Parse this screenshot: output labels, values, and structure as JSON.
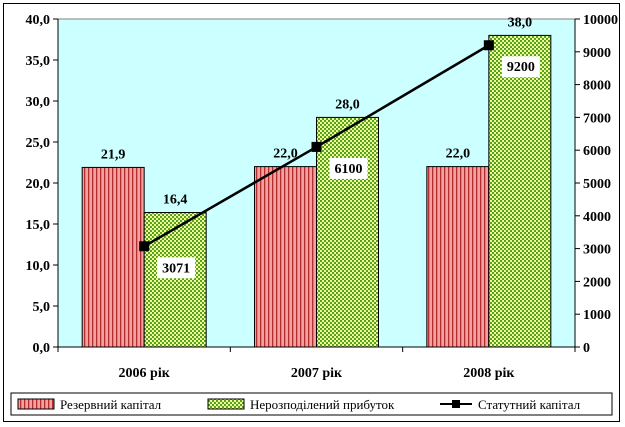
{
  "chart_data": {
    "type": "bar+line",
    "categories": [
      "2006 рік",
      "2007 рік",
      "2008 рік"
    ],
    "series": [
      {
        "name": "Резервний капітал",
        "kind": "bar",
        "axis": "left",
        "values": [
          21.9,
          22.0,
          22.0
        ],
        "labels": [
          "21,9",
          "22,0",
          "22,0"
        ],
        "color": "#f08080"
      },
      {
        "name": "Нерозподілений прибуток",
        "kind": "bar",
        "axis": "left",
        "values": [
          16.4,
          28.0,
          38.0
        ],
        "labels": [
          "16,4",
          "28,0",
          "38,0"
        ],
        "color": "#99cc33"
      },
      {
        "name": "Статутний капітал",
        "kind": "line",
        "axis": "right",
        "values": [
          3071,
          6100,
          9200
        ],
        "labels": [
          "3071",
          "6100",
          "9200"
        ],
        "color": "#000000"
      }
    ],
    "y_left": {
      "lim": [
        0,
        40
      ],
      "ticks": [
        "0,0",
        "5,0",
        "10,0",
        "15,0",
        "20,0",
        "25,0",
        "30,0",
        "35,0",
        "40,0"
      ]
    },
    "y_right": {
      "lim": [
        0,
        10000
      ],
      "ticks": [
        "0",
        "1000",
        "2000",
        "3000",
        "4000",
        "5000",
        "6000",
        "7000",
        "8000",
        "9000",
        "10000"
      ]
    },
    "plot_background": "#ccffff",
    "grid": false,
    "legend_position": "bottom"
  }
}
